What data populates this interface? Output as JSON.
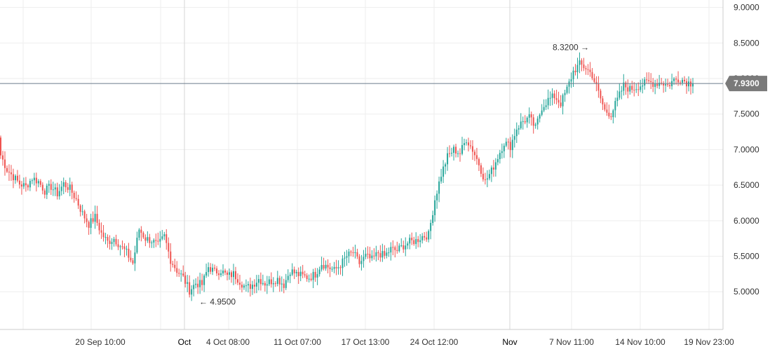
{
  "chart_data": {
    "type": "candlestick",
    "title": "",
    "xlabel": "",
    "ylabel": "",
    "ylim": [
      4.45,
      9.15
    ],
    "y_ticks": [
      "9.0000",
      "8.5000",
      "8.0000",
      "7.5000",
      "7.0000",
      "6.5000",
      "6.0000",
      "5.5000",
      "5.0000"
    ],
    "x_ticks": [
      {
        "label": "20 Sep 10:00",
        "major": false
      },
      {
        "label": "Oct",
        "major": true
      },
      {
        "label": "4 Oct 08:00",
        "major": false
      },
      {
        "label": "11 Oct 07:00",
        "major": false
      },
      {
        "label": "17 Oct 13:00",
        "major": false
      },
      {
        "label": "24 Oct 12:00",
        "major": false
      },
      {
        "label": "Nov",
        "major": true
      },
      {
        "label": "7 Nov 11:00",
        "major": false
      },
      {
        "label": "14 Nov 10:00",
        "major": false
      },
      {
        "label": "19 Nov 23:00",
        "major": false
      }
    ],
    "last_price": "7.9300",
    "last_price_value": 7.93,
    "annotations": [
      {
        "label": "8.3200 →",
        "value": 8.32
      },
      {
        "label": "← 4.9500",
        "value": 4.95
      }
    ],
    "grid": true,
    "colors": {
      "up": "#26a69a",
      "down": "#ef5350",
      "grid": "#eeeeee",
      "price_line": "#6b7b8c",
      "price_tag": "#7a7a7a"
    },
    "close_path": [
      6.92,
      6.72,
      6.62,
      6.52,
      6.48,
      6.6,
      6.55,
      6.42,
      6.48,
      6.38,
      6.52,
      6.45,
      6.3,
      6.1,
      5.95,
      6.05,
      5.82,
      5.7,
      5.75,
      5.65,
      5.55,
      5.4,
      5.88,
      5.75,
      5.72,
      5.65,
      5.78,
      5.45,
      5.3,
      5.2,
      5.02,
      5.12,
      5.1,
      5.35,
      5.28,
      5.3,
      5.22,
      5.25,
      5.15,
      5.05,
      5.1,
      5.18,
      5.12,
      5.15,
      5.18,
      5.1,
      5.3,
      5.25,
      5.22,
      5.2,
      5.25,
      5.4,
      5.35,
      5.3,
      5.38,
      5.5,
      5.55,
      5.4,
      5.5,
      5.45,
      5.55,
      5.5,
      5.6,
      5.58,
      5.65,
      5.7,
      5.72,
      5.78,
      5.8,
      6.3,
      6.65,
      6.9,
      7.0,
      6.95,
      7.15,
      7.0,
      6.8,
      6.55,
      6.7,
      6.9,
      7.1,
      7.05,
      7.3,
      7.4,
      7.45,
      7.3,
      7.6,
      7.7,
      7.75,
      7.65,
      7.85,
      8.1,
      8.2,
      8.15,
      8.05,
      7.8,
      7.55,
      7.5,
      7.7,
      7.9,
      7.85,
      7.88,
      7.92,
      7.95,
      7.93,
      7.95,
      7.9,
      7.98,
      8.0,
      7.95,
      7.93
    ]
  }
}
